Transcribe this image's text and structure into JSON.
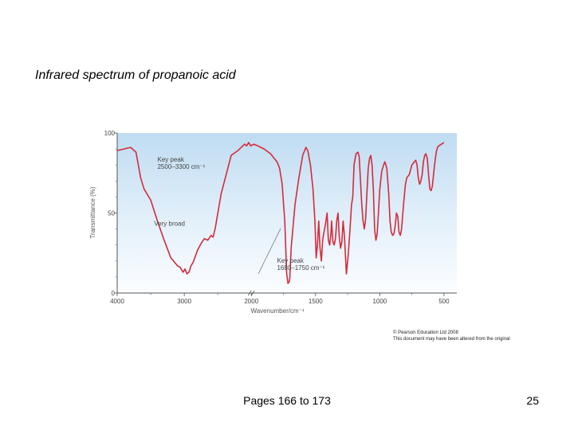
{
  "slide": {
    "title": "Infrared spectrum of propanoic acid",
    "copyright_line1": "© Pearson Education Ltd 2008",
    "copyright_line2": "This document may have been altered from the original",
    "footer": "Pages 166 to 173",
    "page_number": "25"
  },
  "chart_data": {
    "type": "line",
    "ylabel": "Transmittance (%)",
    "xlabel": "Wavenumber/cm⁻¹",
    "xlim": [
      4000,
      400
    ],
    "ylim": [
      0,
      100
    ],
    "x_reversed": true,
    "grid": false,
    "background": "gradient-blue",
    "line_color": "#d42b3a",
    "x_ticks": [
      4000,
      3000,
      2000,
      1500,
      1000,
      500
    ],
    "x_tick_labels": [
      "4000",
      "3000",
      "2000",
      "1500",
      "1000",
      "500"
    ],
    "y_ticks": [
      0,
      50,
      100
    ],
    "y_tick_labels": [
      "0",
      "50",
      "100"
    ],
    "x_axis_breaks": [
      2000
    ],
    "annotations": [
      {
        "lines": [
          "Key peak",
          "2500–3300 cm⁻¹"
        ],
        "x": 3400,
        "y": 82
      },
      {
        "lines": [
          "Very broad"
        ],
        "x": 3450,
        "y": 42
      },
      {
        "lines": [
          "Key peak",
          "1680–1750 cm⁻¹"
        ],
        "x": 1800,
        "y": 19
      }
    ],
    "series": [
      {
        "points": [
          [
            4000,
            89
          ],
          [
            3900,
            90
          ],
          [
            3800,
            91
          ],
          [
            3720,
            88
          ],
          [
            3650,
            72
          ],
          [
            3600,
            65
          ],
          [
            3500,
            58
          ],
          [
            3400,
            45
          ],
          [
            3300,
            33
          ],
          [
            3200,
            22
          ],
          [
            3100,
            17
          ],
          [
            3060,
            16
          ],
          [
            3020,
            13
          ],
          [
            2990,
            15
          ],
          [
            2960,
            12
          ],
          [
            2930,
            13
          ],
          [
            2900,
            17
          ],
          [
            2870,
            19
          ],
          [
            2800,
            27
          ],
          [
            2750,
            31
          ],
          [
            2700,
            34
          ],
          [
            2650,
            33
          ],
          [
            2600,
            36
          ],
          [
            2570,
            35
          ],
          [
            2540,
            40
          ],
          [
            2450,
            62
          ],
          [
            2300,
            86
          ],
          [
            2200,
            89
          ],
          [
            2150,
            91
          ],
          [
            2100,
            93
          ],
          [
            2070,
            92
          ],
          [
            2040,
            94
          ],
          [
            2010,
            92
          ],
          [
            1980,
            93
          ],
          [
            1950,
            92
          ],
          [
            1900,
            90
          ],
          [
            1850,
            87
          ],
          [
            1800,
            82
          ],
          [
            1780,
            78
          ],
          [
            1760,
            68
          ],
          [
            1740,
            45
          ],
          [
            1725,
            12
          ],
          [
            1715,
            6
          ],
          [
            1705,
            7
          ],
          [
            1700,
            10
          ],
          [
            1690,
            28
          ],
          [
            1660,
            55
          ],
          [
            1630,
            72
          ],
          [
            1600,
            86
          ],
          [
            1575,
            91
          ],
          [
            1560,
            89
          ],
          [
            1540,
            80
          ],
          [
            1520,
            65
          ],
          [
            1505,
            45
          ],
          [
            1495,
            22
          ],
          [
            1485,
            30
          ],
          [
            1475,
            45
          ],
          [
            1465,
            28
          ],
          [
            1455,
            20
          ],
          [
            1445,
            33
          ],
          [
            1435,
            38
          ],
          [
            1425,
            42
          ],
          [
            1410,
            50
          ],
          [
            1400,
            33
          ],
          [
            1390,
            30
          ],
          [
            1380,
            37
          ],
          [
            1375,
            45
          ],
          [
            1365,
            32
          ],
          [
            1355,
            30
          ],
          [
            1345,
            34
          ],
          [
            1335,
            45
          ],
          [
            1325,
            50
          ],
          [
            1315,
            35
          ],
          [
            1305,
            28
          ],
          [
            1295,
            32
          ],
          [
            1285,
            45
          ],
          [
            1275,
            35
          ],
          [
            1260,
            12
          ],
          [
            1250,
            20
          ],
          [
            1240,
            30
          ],
          [
            1230,
            42
          ],
          [
            1220,
            55
          ],
          [
            1210,
            60
          ],
          [
            1200,
            80
          ],
          [
            1185,
            87
          ],
          [
            1170,
            88
          ],
          [
            1160,
            85
          ],
          [
            1150,
            70
          ],
          [
            1140,
            55
          ],
          [
            1130,
            45
          ],
          [
            1120,
            40
          ],
          [
            1110,
            46
          ],
          [
            1100,
            62
          ],
          [
            1090,
            78
          ],
          [
            1080,
            84
          ],
          [
            1070,
            86
          ],
          [
            1060,
            80
          ],
          [
            1050,
            65
          ],
          [
            1040,
            40
          ],
          [
            1030,
            33
          ],
          [
            1020,
            37
          ],
          [
            1010,
            50
          ],
          [
            1000,
            65
          ],
          [
            985,
            76
          ],
          [
            970,
            80
          ],
          [
            960,
            82
          ],
          [
            945,
            78
          ],
          [
            930,
            62
          ],
          [
            920,
            45
          ],
          [
            910,
            38
          ],
          [
            900,
            36
          ],
          [
            890,
            37
          ],
          [
            880,
            42
          ],
          [
            870,
            50
          ],
          [
            860,
            48
          ],
          [
            850,
            38
          ],
          [
            840,
            36
          ],
          [
            830,
            40
          ],
          [
            820,
            50
          ],
          [
            810,
            60
          ],
          [
            800,
            68
          ],
          [
            790,
            72
          ],
          [
            770,
            74
          ],
          [
            750,
            80
          ],
          [
            730,
            82
          ],
          [
            720,
            83
          ],
          [
            710,
            80
          ],
          [
            700,
            72
          ],
          [
            690,
            68
          ],
          [
            680,
            70
          ],
          [
            670,
            74
          ],
          [
            660,
            82
          ],
          [
            650,
            86
          ],
          [
            640,
            87
          ],
          [
            630,
            84
          ],
          [
            620,
            74
          ],
          [
            610,
            65
          ],
          [
            600,
            64
          ],
          [
            590,
            67
          ],
          [
            580,
            75
          ],
          [
            570,
            82
          ],
          [
            560,
            88
          ],
          [
            550,
            91
          ],
          [
            540,
            92
          ],
          [
            520,
            93
          ],
          [
            500,
            94
          ]
        ]
      }
    ]
  }
}
